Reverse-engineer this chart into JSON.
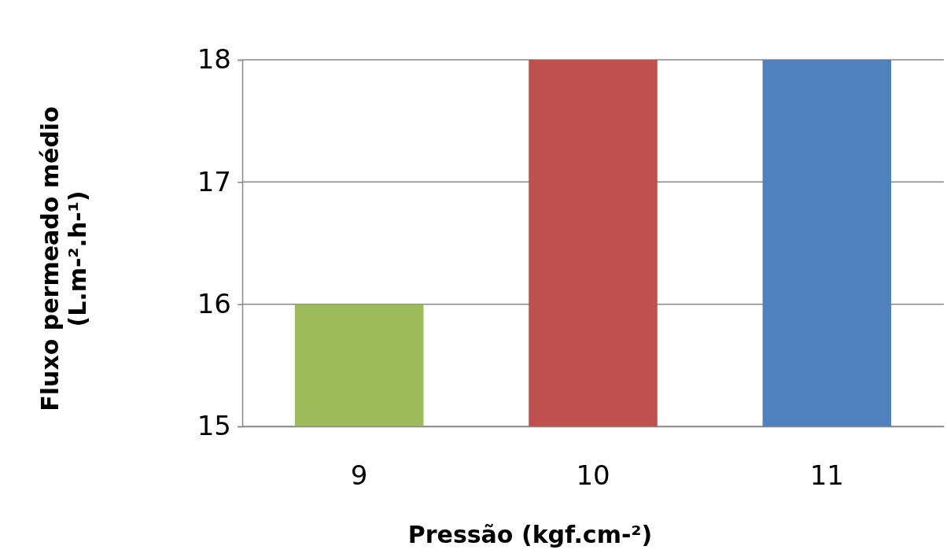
{
  "chart_data": {
    "type": "bar",
    "xlabel": "Pressão (kgf.cm-²)",
    "ylabel": "Fluxo permeado médio (L.m-².h-¹)",
    "categories": [
      "9",
      "10",
      "11"
    ],
    "values": [
      16,
      18,
      18
    ],
    "colors": [
      "#9bbb59",
      "#c0504d",
      "#4f81bd"
    ],
    "ylim": [
      15,
      18
    ],
    "yticks": [
      15,
      16,
      17,
      18
    ],
    "grid": "y"
  }
}
